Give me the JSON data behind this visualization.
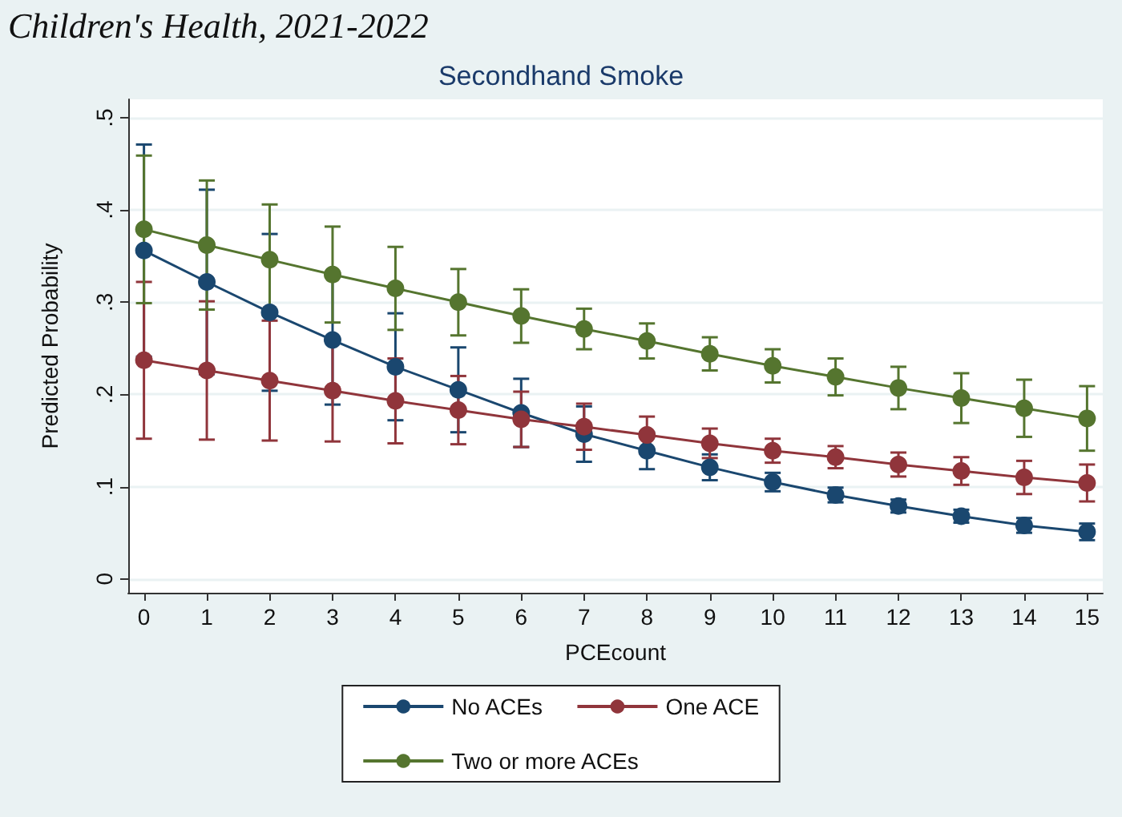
{
  "chart_data": {
    "type": "line",
    "subtitle": "Children's Health, 2021-2022",
    "title": "Secondhand Smoke",
    "xlabel": "PCEcount",
    "ylabel": "Predicted Probability",
    "x": [
      0,
      1,
      2,
      3,
      4,
      5,
      6,
      7,
      8,
      9,
      10,
      11,
      12,
      13,
      14,
      15
    ],
    "xlim": [
      -0.25,
      15.25
    ],
    "xticks": [
      0,
      1,
      2,
      3,
      4,
      5,
      6,
      7,
      8,
      9,
      10,
      11,
      12,
      13,
      14,
      15
    ],
    "ylim": [
      -0.015,
      0.52
    ],
    "yticks": [
      0,
      {
        "value": 0.1,
        "label": ".1"
      },
      {
        "value": 0.2,
        "label": ".2"
      },
      {
        "value": 0.3,
        "label": ".3"
      },
      {
        "value": 0.4,
        "label": ".4"
      },
      {
        "value": 0.5,
        "label": ".5"
      }
    ],
    "grid": "y",
    "legend": "bottom",
    "marker": "circle",
    "line_style": "solid",
    "series": [
      {
        "name": "No ACEs",
        "color": "#1a476f",
        "values": [
          0.356,
          0.322,
          0.289,
          0.259,
          0.23,
          0.205,
          0.18,
          0.157,
          0.139,
          0.121,
          0.105,
          0.091,
          0.079,
          0.068,
          0.058,
          0.051
        ],
        "errors": [
          0.115,
          0.1,
          0.085,
          0.07,
          0.058,
          0.046,
          0.037,
          0.03,
          0.02,
          0.014,
          0.01,
          0.008,
          0.007,
          0.007,
          0.008,
          0.009
        ]
      },
      {
        "name": "One ACE",
        "color": "#90353b",
        "values": [
          0.237,
          0.226,
          0.215,
          0.204,
          0.193,
          0.183,
          0.173,
          0.165,
          0.156,
          0.147,
          0.139,
          0.132,
          0.124,
          0.117,
          0.11,
          0.104
        ],
        "errors": [
          0.085,
          0.075,
          0.065,
          0.055,
          0.046,
          0.037,
          0.03,
          0.025,
          0.02,
          0.016,
          0.013,
          0.012,
          0.013,
          0.015,
          0.018,
          0.02
        ]
      },
      {
        "name": "Two or more ACEs",
        "color": "#55752f",
        "values": [
          0.379,
          0.362,
          0.346,
          0.33,
          0.315,
          0.3,
          0.285,
          0.271,
          0.258,
          0.244,
          0.231,
          0.219,
          0.207,
          0.196,
          0.185,
          0.174
        ],
        "errors": [
          0.08,
          0.07,
          0.06,
          0.052,
          0.045,
          0.036,
          0.029,
          0.022,
          0.019,
          0.018,
          0.018,
          0.02,
          0.023,
          0.027,
          0.031,
          0.035
        ]
      }
    ]
  }
}
